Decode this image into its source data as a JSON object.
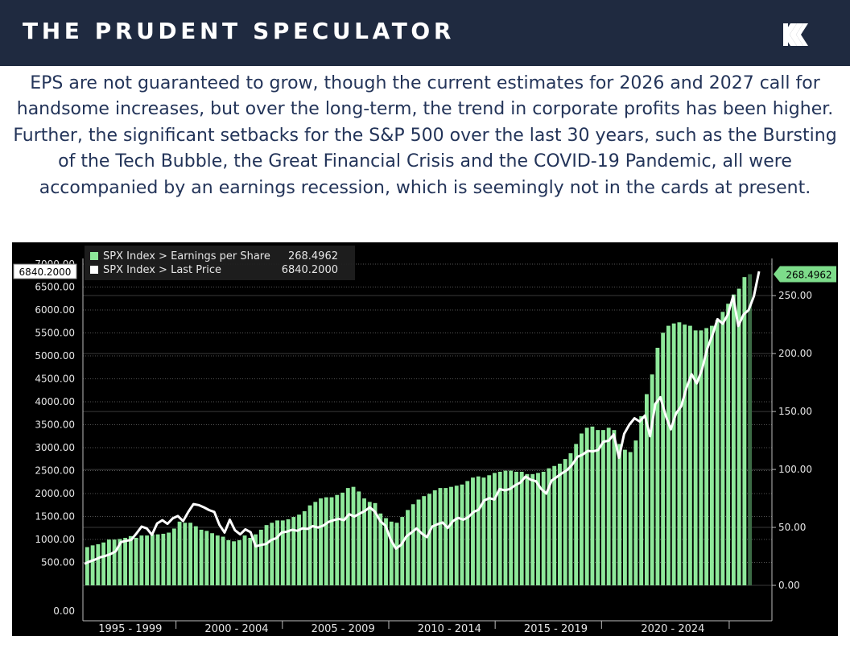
{
  "header": {
    "title": "THE PRUDENT SPECULATOR",
    "logo_icon": "tps-k-logo-icon"
  },
  "body_text": "EPS are not guaranteed to grow, though the current estimates for 2026 and 2027 call for handsome increases, but over the long-term, the trend in corporate profits has been higher. Further, the significant setbacks for the S&P 500 over the last 30 years, such as the Bursting of the Tech Bubble, the Great Financial Crisis and the COVID-19 Pandemic, all were accompanied by an earnings recession, which is seemingly not in the cards at present.",
  "colors": {
    "header_bg": "#1f2a40",
    "text": "#233459",
    "chart_bg": "#000000",
    "bar": "#8ee89a",
    "bar_last": "#3c6b45",
    "line": "#ffffff",
    "grid": "#555555"
  },
  "chart_data": {
    "type": "bar",
    "title": "",
    "xlabel": "",
    "legend_position": "top-left",
    "series": [
      {
        "name": "SPX Index > Earnings per Share",
        "type": "bar",
        "axis": "right",
        "last_value_label": "268.4962",
        "values": [
          33,
          34.5,
          35.5,
          37,
          39.5,
          39.5,
          40,
          41,
          42.5,
          41,
          43,
          43,
          44,
          44,
          44.5,
          45.5,
          49,
          55,
          54,
          54,
          51,
          48,
          47,
          45,
          43,
          42,
          39,
          38,
          39,
          43,
          41,
          44,
          48,
          52,
          54,
          56,
          56,
          57,
          59,
          61,
          64,
          69,
          72,
          75,
          76,
          76,
          78,
          80,
          84,
          85,
          81,
          75,
          72,
          71,
          62,
          58,
          55,
          54,
          59,
          65,
          70,
          74,
          77,
          79,
          82,
          84,
          84,
          85,
          86,
          87,
          90,
          93,
          94,
          93,
          95,
          97,
          98,
          99,
          99,
          98,
          98,
          96,
          96,
          97,
          98,
          101,
          103,
          105,
          109,
          114,
          122,
          131,
          136,
          137,
          134,
          134,
          136,
          134,
          122,
          117,
          115,
          125,
          146,
          165,
          182,
          205,
          218,
          224,
          226,
          227,
          225,
          224,
          220,
          220,
          222,
          224,
          229,
          236,
          243,
          251,
          256,
          266,
          268.4962
        ]
      },
      {
        "name": "SPX Index > Last Price",
        "type": "line",
        "axis": "left",
        "last_value_label": "6840.2000",
        "values": [
          470,
          520,
          560,
          610,
          640,
          680,
          740,
          940,
          970,
          990,
          1130,
          1280,
          1240,
          1100,
          1350,
          1420,
          1340,
          1460,
          1510,
          1400,
          1600,
          1770,
          1750,
          1700,
          1640,
          1600,
          1320,
          1150,
          1430,
          1200,
          1110,
          1220,
          1160,
          850,
          880,
          900,
          990,
          1030,
          1150,
          1170,
          1210,
          1190,
          1240,
          1230,
          1290,
          1260,
          1300,
          1380,
          1420,
          1450,
          1420,
          1550,
          1500,
          1560,
          1620,
          1700,
          1600,
          1400,
          1300,
          1000,
          800,
          880,
          1060,
          1150,
          1240,
          1130,
          1050,
          1280,
          1330,
          1370,
          1250,
          1400,
          1470,
          1430,
          1490,
          1600,
          1650,
          1850,
          1900,
          1870,
          2100,
          2070,
          2100,
          2180,
          2240,
          2370,
          2300,
          2270,
          2100,
          2000,
          2280,
          2360,
          2440,
          2510,
          2630,
          2800,
          2850,
          2930,
          2920,
          2950,
          3130,
          3150,
          3290,
          2780,
          3300,
          3500,
          3640,
          3570,
          3700,
          3250,
          3950,
          4100,
          3700,
          3400,
          3750,
          3900,
          4300,
          4600,
          4400,
          4700,
          5150,
          5450,
          5800,
          5700,
          5900,
          6300,
          5650,
          5900,
          6000,
          6300,
          6840.2
        ]
      }
    ],
    "left_axis": {
      "ylim": [
        0,
        7000
      ],
      "ticks": [
        0,
        500,
        1000,
        1500,
        2000,
        2500,
        3000,
        3500,
        4000,
        4500,
        5000,
        5500,
        6000,
        6500,
        7000
      ],
      "tick_labels": [
        "0.00",
        "500.00",
        "1000.00",
        "1500.00",
        "2000.00",
        "2500.00",
        "3000.00",
        "3500.00",
        "4000.00",
        "4500.00",
        "5000.00",
        "5500.00",
        "6000.00",
        "6500.00",
        "7000.00"
      ]
    },
    "right_axis": {
      "ylim": [
        0,
        280
      ],
      "ticks": [
        0,
        50,
        100,
        150,
        200,
        250
      ],
      "tick_labels": [
        "0.00",
        "50.00",
        "100.00",
        "150.00",
        "200.00",
        "250.00"
      ]
    },
    "x_axis": {
      "start_year": 1995,
      "end_year": 2026.4,
      "period_labels": [
        "1995 - 1999",
        "2000 - 2004",
        "2005 - 2009",
        "2010 - 2014",
        "2015 - 2019",
        "2020 - 2024"
      ],
      "period_starts": [
        1995,
        2000,
        2005,
        2010,
        2015,
        2020
      ],
      "boundary_years": [
        1999.3,
        2004.3,
        2009.3,
        2014.3,
        2019.3,
        2025.3
      ]
    }
  }
}
